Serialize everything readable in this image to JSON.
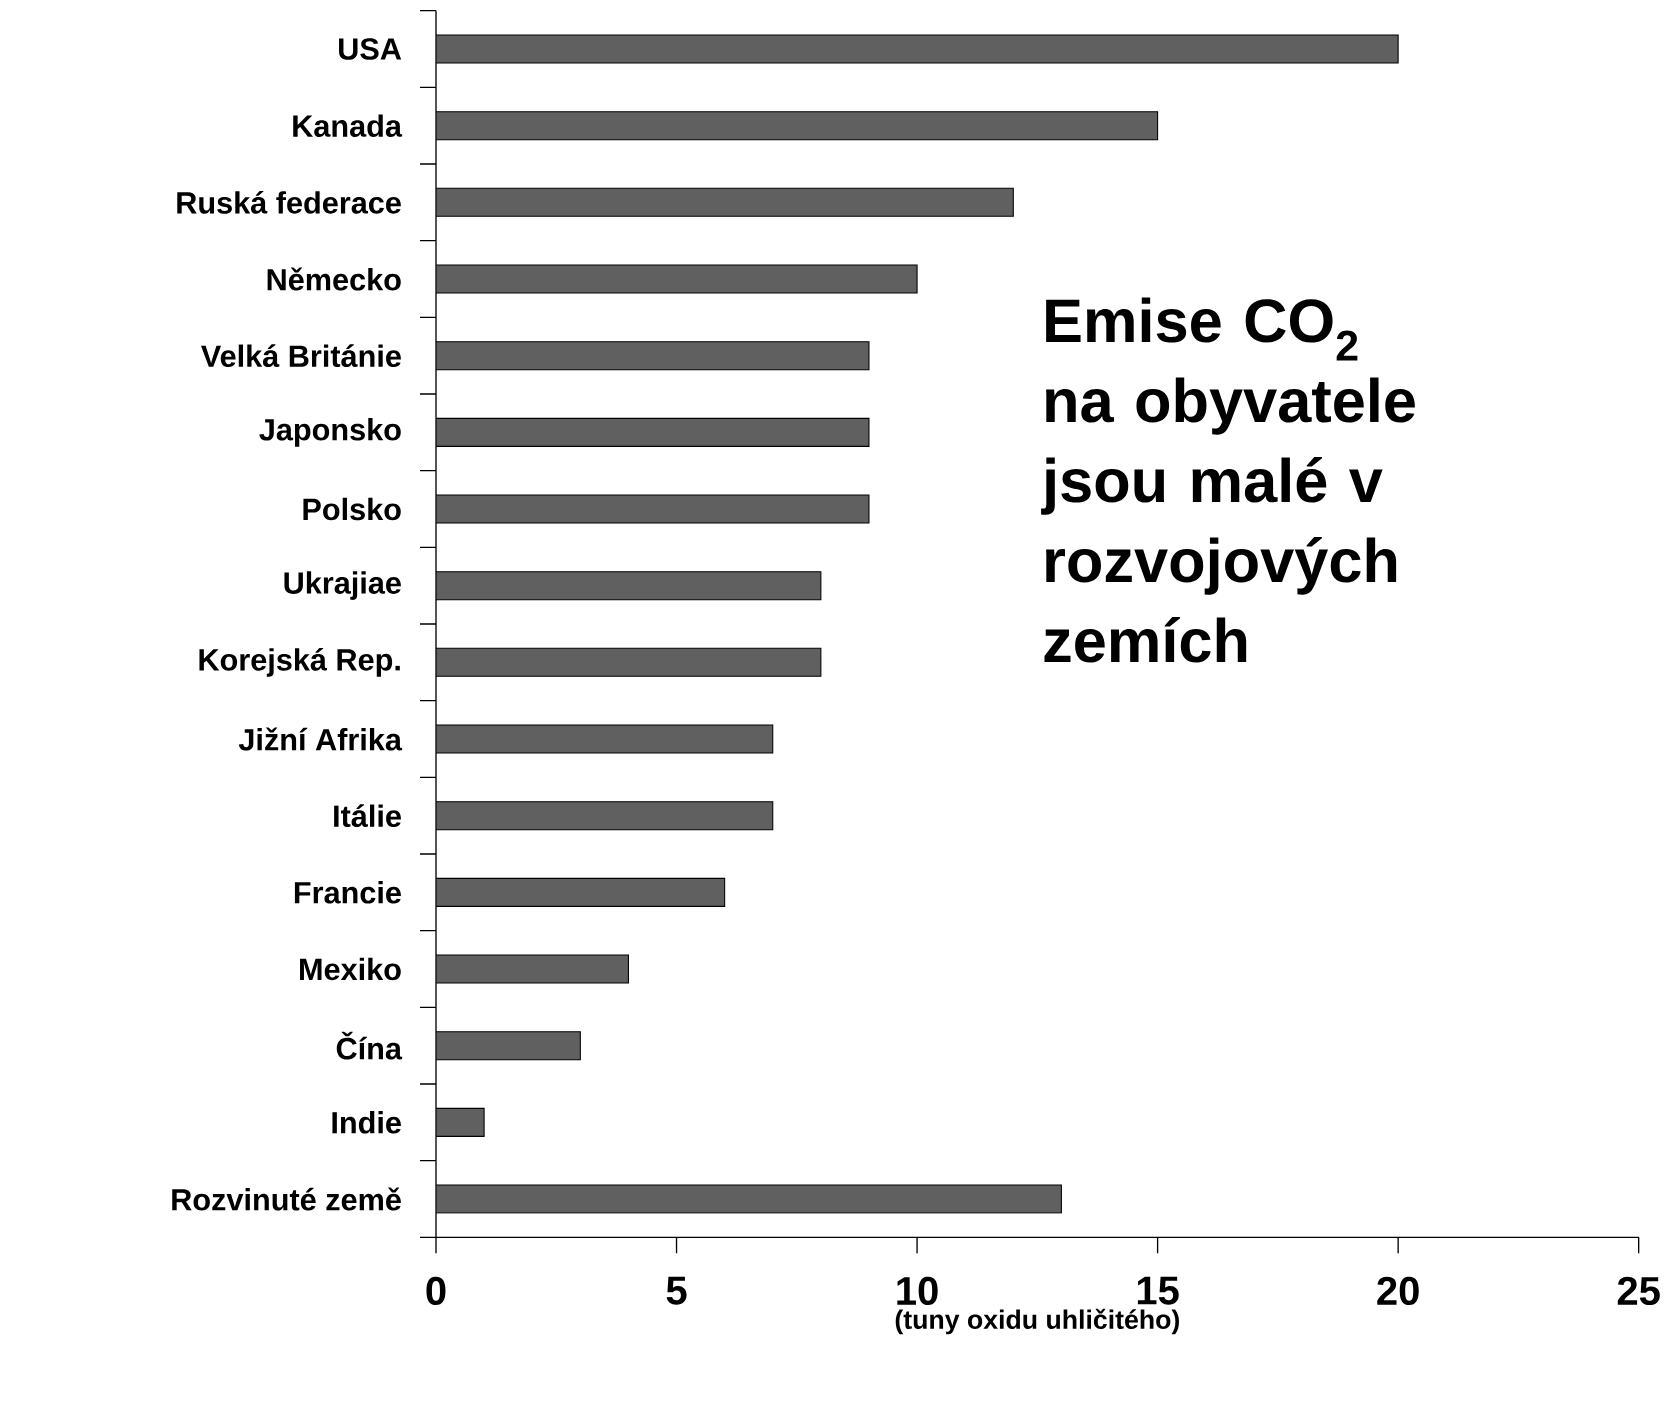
{
  "chart_data": {
    "type": "bar",
    "orientation": "horizontal",
    "title": "Emise CO$_{2}$ na obyvatele jsou malé v rozvojových zemích",
    "xlabel": "(tuny oxidu uhličitého)",
    "categories": [
      "USA",
      "Kanada",
      "Ruská federace",
      "Německo",
      "Velká Británie",
      "Japonsko",
      "Polsko",
      "Ukrajiae",
      "Korejská Rep.",
      "Jižní Afrika",
      "Itálie",
      "Francie",
      "Mexiko",
      "Čína",
      "Indie",
      "Rozvinuté země"
    ],
    "values": [
      20,
      15,
      12,
      10,
      9,
      9,
      9,
      8,
      8,
      7,
      7,
      6,
      4,
      3,
      1,
      13
    ],
    "color": "#606060",
    "xlim": [
      0,
      25
    ],
    "xticks": [
      0,
      5,
      10,
      15,
      20,
      25
    ],
    "grid": false
  }
}
